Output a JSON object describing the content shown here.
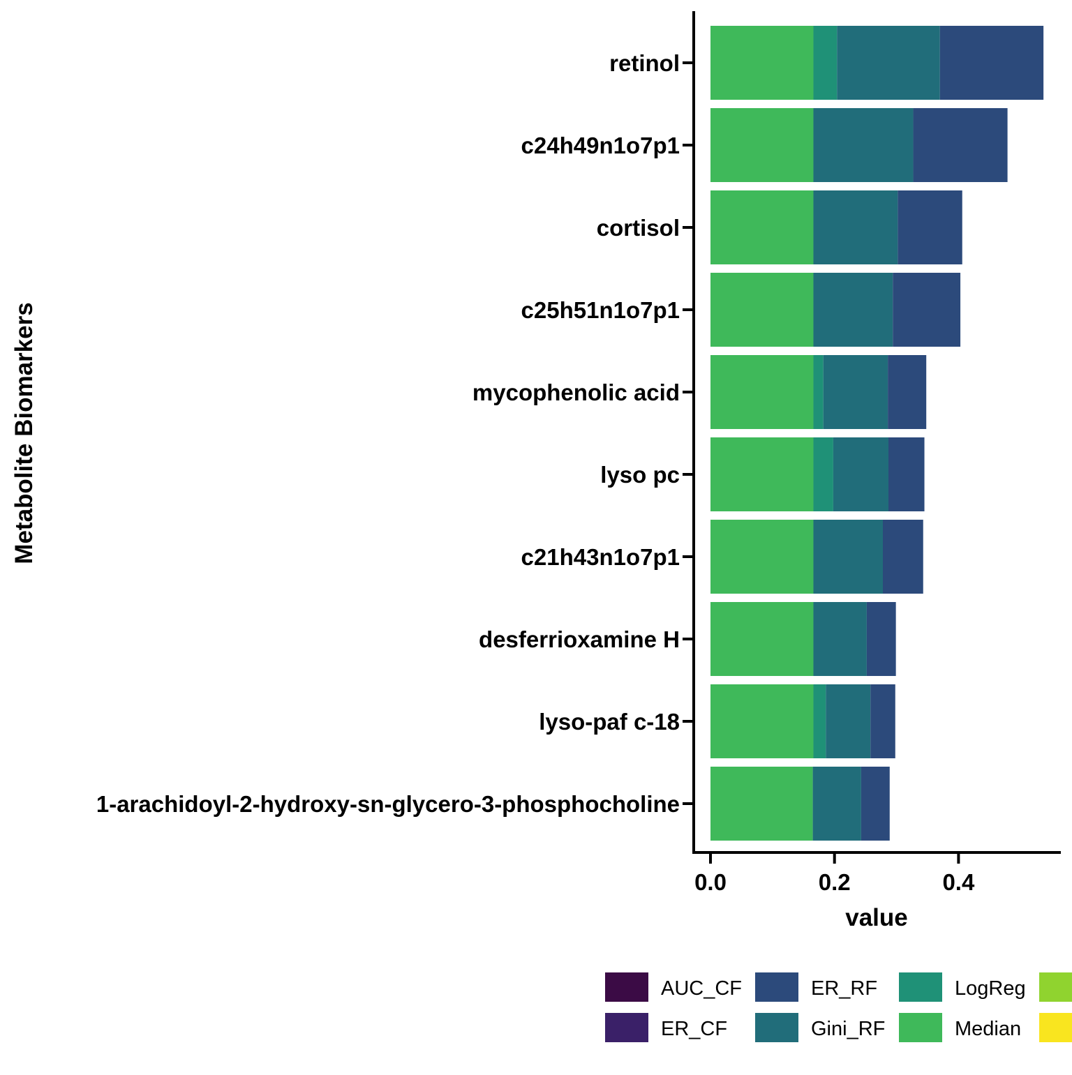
{
  "chart_data": {
    "type": "bar",
    "orientation": "horizontal",
    "stacked": true,
    "title": "",
    "xlabel": "value",
    "ylabel": "Metabolite Biomarkers",
    "xlim": [
      0,
      0.55
    ],
    "xticks": [
      0.0,
      0.2,
      0.4
    ],
    "xtick_labels": [
      "0.0",
      "0.2",
      "0.4"
    ],
    "grid": false,
    "legend_position": "bottom",
    "categories": [
      "retinol",
      "c24h49n1o7p1",
      "cortisol",
      "c25h51n1o7p1",
      "mycophenolic acid",
      "lyso pc",
      "c21h43n1o7p1",
      "desferrioxamine H",
      "lyso-paf c-18",
      "1-arachidoyl-2-hydroxy-sn-glycero-3-phosphocholine"
    ],
    "series": [
      {
        "name": "Median",
        "color": "#3fb95a",
        "values": [
          0.166,
          0.166,
          0.166,
          0.166,
          0.166,
          0.166,
          0.166,
          0.166,
          0.166,
          0.165
        ]
      },
      {
        "name": "LogReg",
        "color": "#1f9177",
        "values": [
          0.038,
          0.0,
          0.0,
          0.0,
          0.016,
          0.032,
          0.0,
          0.0,
          0.02,
          0.0
        ]
      },
      {
        "name": "Gini_RF",
        "color": "#216d7a",
        "values": [
          0.166,
          0.161,
          0.136,
          0.128,
          0.104,
          0.089,
          0.112,
          0.086,
          0.072,
          0.078
        ]
      },
      {
        "name": "ER_RF",
        "color": "#2c4a7b",
        "values": [
          0.167,
          0.152,
          0.104,
          0.109,
          0.062,
          0.058,
          0.065,
          0.047,
          0.04,
          0.046
        ]
      }
    ],
    "legend": [
      {
        "name": "AUC_CF",
        "color": "#3b0b45"
      },
      {
        "name": "ER_CF",
        "color": "#3a2068"
      },
      {
        "name": "ER_RF",
        "color": "#2c4a7b"
      },
      {
        "name": "Gini_RF",
        "color": "#216d7a"
      },
      {
        "name": "LogReg",
        "color": "#1f9177"
      },
      {
        "name": "Median",
        "color": "#3fb95a"
      },
      {
        "name": "",
        "color": "#90d32f"
      },
      {
        "name": "",
        "color": "#f9e51f"
      }
    ]
  }
}
